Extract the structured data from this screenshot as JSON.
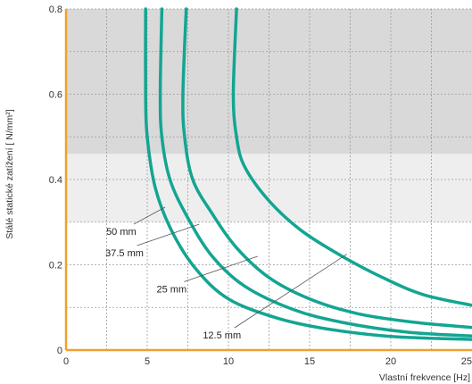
{
  "chart_data": {
    "type": "line",
    "title": "",
    "xlabel": "Vlastní frekvence [Hz]",
    "ylabel": "Stálé statické zatížení [ N/mm²]",
    "xlim": [
      0,
      25
    ],
    "ylim": [
      0,
      0.8
    ],
    "x_ticks": [
      "0",
      "5",
      "10",
      "15",
      "20",
      "25"
    ],
    "y_ticks": [
      "0",
      "0.2",
      "0.4",
      "0.6",
      "0.8"
    ],
    "grid": true,
    "regions": [
      {
        "from": 0.46,
        "to": 0.8,
        "color": "#d9d9d9"
      },
      {
        "from": 0.3,
        "to": 0.46,
        "color": "#eeeeee"
      }
    ],
    "colors": {
      "series": "#13a592",
      "axis": "#f0a030",
      "grid": "#9a9a9a"
    },
    "series": [
      {
        "name": "50 mm",
        "x": [
          4.9,
          4.9,
          5.0,
          5.5,
          6.5,
          8.0,
          10.0,
          13.0,
          16.0,
          20.0,
          25.0
        ],
        "y": [
          0.8,
          0.6,
          0.5,
          0.38,
          0.28,
          0.19,
          0.12,
          0.075,
          0.05,
          0.032,
          0.025
        ]
      },
      {
        "name": "37.5 mm",
        "x": [
          5.9,
          5.8,
          5.9,
          6.4,
          7.5,
          9.0,
          11.0,
          14.0,
          17.0,
          21.0,
          25.0
        ],
        "y": [
          0.8,
          0.6,
          0.5,
          0.4,
          0.31,
          0.22,
          0.15,
          0.095,
          0.065,
          0.042,
          0.033
        ]
      },
      {
        "name": "25 mm",
        "x": [
          7.4,
          7.2,
          7.3,
          7.8,
          9.0,
          10.5,
          12.5,
          15.0,
          18.0,
          21.5,
          25.0
        ],
        "y": [
          0.8,
          0.6,
          0.5,
          0.4,
          0.32,
          0.24,
          0.17,
          0.12,
          0.085,
          0.065,
          0.053
        ]
      },
      {
        "name": "12.5 mm",
        "x": [
          10.5,
          10.3,
          10.5,
          11.0,
          12.5,
          14.5,
          17.0,
          19.5,
          22.0,
          25.0
        ],
        "y": [
          0.8,
          0.6,
          0.5,
          0.43,
          0.35,
          0.28,
          0.22,
          0.17,
          0.13,
          0.105
        ]
      }
    ],
    "annotations": [
      {
        "text": "50 mm",
        "label": [
          3.4,
          0.27
        ],
        "point": [
          6.1,
          0.335
        ],
        "anchor": "middle"
      },
      {
        "text": "37.5 mm",
        "label": [
          3.6,
          0.22
        ],
        "point": [
          8.2,
          0.295
        ],
        "anchor": "middle"
      },
      {
        "text": "25 mm",
        "label": [
          6.5,
          0.135
        ],
        "point": [
          11.8,
          0.22
        ],
        "anchor": "middle"
      },
      {
        "text": "12.5 mm",
        "label": [
          9.6,
          0.027
        ],
        "point": [
          17.3,
          0.225
        ],
        "anchor": "middle"
      }
    ]
  }
}
